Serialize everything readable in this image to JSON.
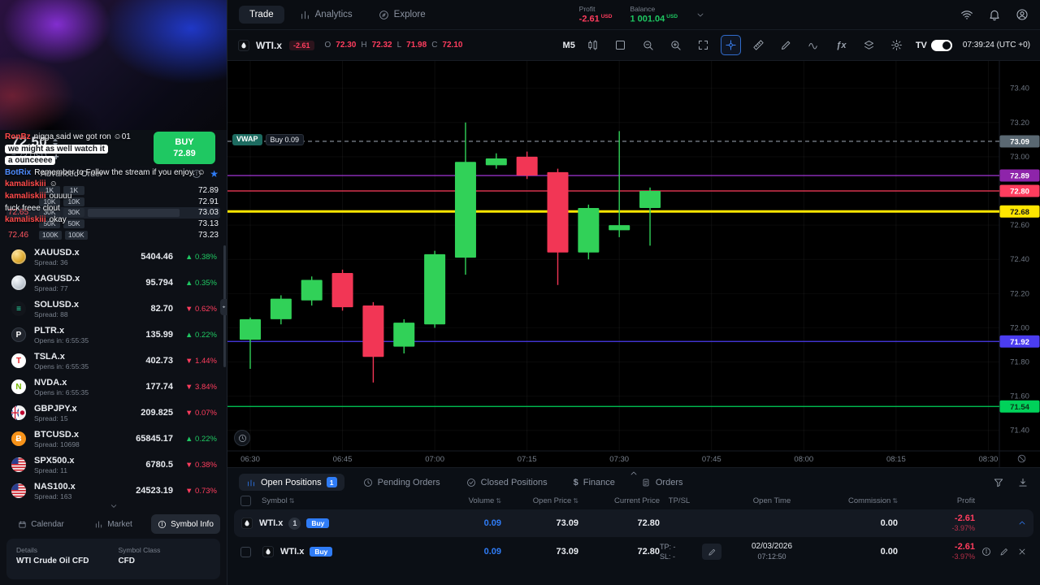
{
  "icons": {
    "fx": "ƒx",
    "star": "★",
    "sort": "⇅",
    "collapse": "◂▸",
    "up_arrow": "▲",
    "down_arrow": "▼",
    "dollar": "$"
  },
  "colors": {
    "accent_blue": "#2f7cf6",
    "green": "#1fc862",
    "red": "#ff3d5e",
    "candle_up": "#31d158",
    "candle_down": "#f23655"
  },
  "topbar": {
    "tabs": [
      {
        "label": "Trade",
        "active": true
      },
      {
        "label": "Analytics"
      },
      {
        "label": "Explore"
      }
    ],
    "profit_label": "Profit",
    "profit_value": "-2.61",
    "profit_currency": "USD",
    "balance_label": "Balance",
    "balance_value": "1 001.04",
    "balance_currency": "USD"
  },
  "sidebar": {
    "chat": {
      "messages": [
        {
          "user": "RonBz",
          "color": "#ff4a4a",
          "text": "nigga said we got ron ☺01"
        },
        {
          "user": "",
          "text": "we might as well watch it",
          "chip": true
        },
        {
          "user": "",
          "text": "a ounceeee",
          "chip": true
        },
        {
          "user": "BotRix",
          "color": "#4f8cff",
          "text": "Remember to Follow the stream if you enjoy. ☺"
        },
        {
          "user": "kamaliskiii",
          "color": "#ff4a4a",
          "text": "☺"
        },
        {
          "user": "kamaliskiii",
          "color": "#ff4a4a",
          "text": "ouuuu"
        },
        {
          "user": "",
          "text": "fuck freee clout"
        },
        {
          "user": "kamaliskiii",
          "color": "#ff4a4a",
          "text": "okay"
        }
      ]
    },
    "order_ticket": {
      "price": "72.50",
      "conversion": "= 73 USD",
      "plus": "+",
      "buy_label": "BUY",
      "buy_price": "72.89",
      "advanced_order": "Advanced Order"
    },
    "dom": {
      "rows": [
        {
          "left": "",
          "v1": "1K",
          "v2": "1K",
          "price": "72.89"
        },
        {
          "left": "",
          "v1": "10K",
          "v2": "10K",
          "price": "72.91"
        },
        {
          "left": "72.65",
          "v1": "30K",
          "v2": "30K",
          "price": "73.03",
          "highlight": true
        },
        {
          "left": "",
          "v1": "50K",
          "v2": "50K",
          "price": "73.13"
        },
        {
          "left": "72.46",
          "v1": "100K",
          "v2": "100K",
          "price": "73.23"
        }
      ]
    },
    "watchlist": [
      {
        "symbol": "XAUUSD.x",
        "sub": "Spread: 36",
        "price": "5404.46",
        "change": "0.38%",
        "dir": "up",
        "icon": "gold-coin"
      },
      {
        "symbol": "XAGUSD.x",
        "sub": "Spread: 77",
        "price": "95.794",
        "change": "0.35%",
        "dir": "up",
        "icon": "silver-coin"
      },
      {
        "symbol": "SOLUSD.x",
        "sub": "Spread: 88",
        "price": "82.70",
        "change": "0.62%",
        "dir": "down",
        "icon": "solana"
      },
      {
        "symbol": "PLTR.x",
        "sub": "Opens in: 6:55:35",
        "price": "135.99",
        "change": "0.22%",
        "dir": "up",
        "icon": "pltr"
      },
      {
        "symbol": "TSLA.x",
        "sub": "Opens in: 6:55:35",
        "price": "402.73",
        "change": "1.44%",
        "dir": "down",
        "icon": "tsla"
      },
      {
        "symbol": "NVDA.x",
        "sub": "Opens in: 6:55:35",
        "price": "177.74",
        "change": "3.84%",
        "dir": "down",
        "icon": "nvda"
      },
      {
        "symbol": "GBPJPY.x",
        "sub": "Spread: 15",
        "price": "209.825",
        "change": "0.07%",
        "dir": "down",
        "icon": "gbpjpy"
      },
      {
        "symbol": "BTCUSD.x",
        "sub": "Spread: 10698",
        "price": "65845.17",
        "change": "0.22%",
        "dir": "up",
        "icon": "btc"
      },
      {
        "symbol": "SPX500.x",
        "sub": "Spread: 11",
        "price": "6780.5",
        "change": "0.38%",
        "dir": "down",
        "icon": "us-flag"
      },
      {
        "symbol": "NAS100.x",
        "sub": "Spread: 163",
        "price": "24523.19",
        "change": "0.73%",
        "dir": "down",
        "icon": "us-flag"
      }
    ],
    "tabs": [
      {
        "label": "Calendar"
      },
      {
        "label": "Market"
      },
      {
        "label": "Symbol Info",
        "active": true
      }
    ],
    "details": {
      "col1_label": "Details",
      "col1_value": "WTI Crude Oil CFD",
      "col2_label": "Symbol Class",
      "col2_value": "CFD"
    }
  },
  "chart": {
    "toolbar": {
      "symbol": "WTI.x",
      "pl": "-2.61",
      "o_label": "O",
      "o": "72.30",
      "h_label": "H",
      "h": "72.32",
      "l_label": "L",
      "l": "71.98",
      "c_label": "C",
      "c": "72.10",
      "timeframe": "M5",
      "tv_label": "TV",
      "clock": "07:39:24 (UTC +0)"
    },
    "position": {
      "label": "VWAP",
      "chip": "Buy 0.09"
    }
  },
  "chart_data": {
    "type": "candlestick",
    "symbol": "WTI.x",
    "interval": "M5",
    "price_range": [
      71.28,
      73.56
    ],
    "colors": {
      "up": "#31d158",
      "down": "#f23655"
    },
    "candles": [
      {
        "t": "06:30",
        "o": 71.93,
        "h": 72.06,
        "l": 71.76,
        "c": 72.05
      },
      {
        "t": "06:35",
        "o": 72.05,
        "h": 72.19,
        "l": 72.02,
        "c": 72.17
      },
      {
        "t": "06:40",
        "o": 72.16,
        "h": 72.3,
        "l": 72.13,
        "c": 72.28
      },
      {
        "t": "06:45",
        "o": 72.32,
        "h": 72.34,
        "l": 72.1,
        "c": 72.12
      },
      {
        "t": "06:50",
        "o": 72.13,
        "h": 72.15,
        "l": 71.68,
        "c": 71.83
      },
      {
        "t": "06:55",
        "o": 71.89,
        "h": 72.05,
        "l": 71.85,
        "c": 72.03
      },
      {
        "t": "07:00",
        "o": 72.02,
        "h": 72.45,
        "l": 72.0,
        "c": 72.43
      },
      {
        "t": "07:05",
        "o": 72.41,
        "h": 73.2,
        "l": 72.31,
        "c": 72.97
      },
      {
        "t": "07:10",
        "o": 72.95,
        "h": 73.02,
        "l": 72.93,
        "c": 72.99
      },
      {
        "t": "07:15",
        "o": 73.0,
        "h": 73.03,
        "l": 72.87,
        "c": 72.89
      },
      {
        "t": "07:20",
        "o": 72.91,
        "h": 72.93,
        "l": 72.25,
        "c": 72.44
      },
      {
        "t": "07:25",
        "o": 72.44,
        "h": 72.72,
        "l": 72.4,
        "c": 72.7
      },
      {
        "t": "07:30",
        "o": 72.57,
        "h": 73.15,
        "l": 72.53,
        "c": 72.6
      },
      {
        "t": "07:35",
        "o": 72.7,
        "h": 72.82,
        "l": 72.48,
        "c": 72.8
      }
    ],
    "levels": [
      {
        "price": 73.09,
        "label": "73.09",
        "type": "position-entry-vwap",
        "color": "#8f98a3",
        "style": "dashed",
        "badge_bg": "#5a6872",
        "badge_fg": "#ffffff"
      },
      {
        "price": 72.89,
        "label": "72.89",
        "type": "indicator",
        "color": "#b43bee",
        "style": "solid",
        "badge_bg": "#8e24aa",
        "badge_fg": "#ffffff"
      },
      {
        "price": 72.8,
        "label": "72.80",
        "type": "current-price",
        "color": "#ff3d5e",
        "style": "solid",
        "badge_bg": "#ff3d5e",
        "badge_fg": "#ffffff"
      },
      {
        "price": 72.68,
        "label": "72.68",
        "type": "indicator",
        "color": "#ffe600",
        "style": "solid",
        "width": 3,
        "badge_bg": "#ffe600",
        "badge_fg": "#15181d"
      },
      {
        "price": 71.92,
        "label": "71.92",
        "type": "indicator",
        "color": "#4b3df0",
        "style": "solid",
        "badge_bg": "#4b3df0",
        "badge_fg": "#ffffff"
      },
      {
        "price": 71.54,
        "label": "71.54",
        "type": "indicator",
        "color": "#00d25a",
        "style": "solid",
        "badge_bg": "#00d25a",
        "badge_fg": "#0b3317"
      }
    ],
    "y_ticks": [
      73.4,
      73.2,
      73.0,
      72.8,
      72.6,
      72.4,
      72.2,
      72.0,
      71.8,
      71.6,
      71.4
    ],
    "x_ticks": [
      "06:30",
      "06:45",
      "07:00",
      "07:15",
      "07:30",
      "07:45",
      "08:00",
      "08:15",
      "08:30"
    ]
  },
  "panel": {
    "tabs": [
      {
        "label": "Open Positions",
        "badge": "1",
        "active": true
      },
      {
        "label": "Pending Orders"
      },
      {
        "label": "Closed Positions"
      },
      {
        "label": "Finance"
      },
      {
        "label": "Orders"
      }
    ],
    "head": {
      "symbol": "Symbol",
      "volume": "Volume",
      "open_price": "Open Price",
      "current_price": "Current Price",
      "tpsl": "TP/SL",
      "open_time": "Open Time",
      "commission": "Commission",
      "profit": "Profit"
    }
  },
  "positions": {
    "group": {
      "symbol": "WTI.x",
      "count": "1",
      "side": "Buy",
      "volume": "0.09",
      "open_price": "73.09",
      "current_price": "72.80",
      "commission": "0.00",
      "profit": "-2.61",
      "profit_pct": "-3.97%"
    },
    "detail": {
      "symbol": "WTI.x",
      "side": "Buy",
      "volume": "0.09",
      "open_price": "73.09",
      "current_price": "72.80",
      "tp": "TP: -",
      "sl": "SL: -",
      "open_date": "02/03/2026",
      "open_time": "07:12:50",
      "commission": "0.00",
      "profit": "-2.61",
      "profit_pct": "-3.97%"
    }
  }
}
